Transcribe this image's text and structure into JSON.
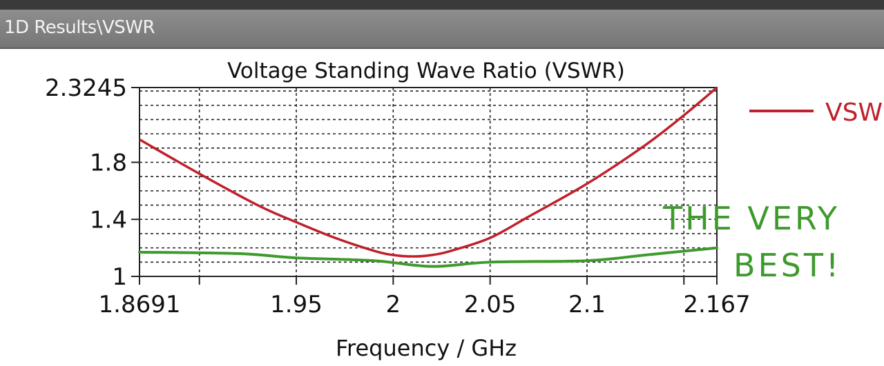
{
  "window": {
    "title": "1D Results\\VSWR"
  },
  "colors": {
    "series": "#c0202a",
    "annotation": "#3f9a2e",
    "grid": "#222222",
    "titlebar": "#808080"
  },
  "chart_data": {
    "type": "line",
    "title": "Voltage Standing Wave Ratio (VSWR)",
    "xlabel": "Frequency / GHz",
    "ylabel": "",
    "xlim": [
      1.8691,
      2.167
    ],
    "ylim": [
      1,
      2.3245
    ],
    "x_ticks": [
      1.8691,
      1.95,
      2,
      2.05,
      2.1,
      2.167
    ],
    "x_tick_labels": [
      "1.8691",
      "1.95",
      "2",
      "2.05",
      "2.1",
      "2.167"
    ],
    "y_ticks": [
      1,
      1.4,
      1.8,
      2.3245
    ],
    "y_tick_labels": [
      "1",
      "1.4",
      "1.8",
      "2.3245"
    ],
    "grid": true,
    "legend_position": "top-right",
    "series": [
      {
        "name": "VSWR",
        "x": [
          1.8691,
          1.9,
          1.93,
          1.95,
          1.97,
          1.99,
          2.0,
          2.01,
          2.02,
          2.03,
          2.05,
          2.07,
          2.1,
          2.13,
          2.15,
          2.167
        ],
        "y": [
          1.96,
          1.72,
          1.5,
          1.38,
          1.27,
          1.18,
          1.15,
          1.14,
          1.15,
          1.18,
          1.27,
          1.42,
          1.65,
          1.92,
          2.13,
          2.3245
        ]
      }
    ],
    "annotations": [
      {
        "text_line1": "THE VERY",
        "text_line2": "BEST!"
      }
    ],
    "annotation_line": {
      "x": [
        1.8691,
        1.92,
        1.95,
        1.99,
        2.02,
        2.05,
        2.1,
        2.13,
        2.167
      ],
      "y": [
        1.17,
        1.16,
        1.13,
        1.11,
        1.07,
        1.1,
        1.11,
        1.15,
        1.2
      ]
    }
  }
}
